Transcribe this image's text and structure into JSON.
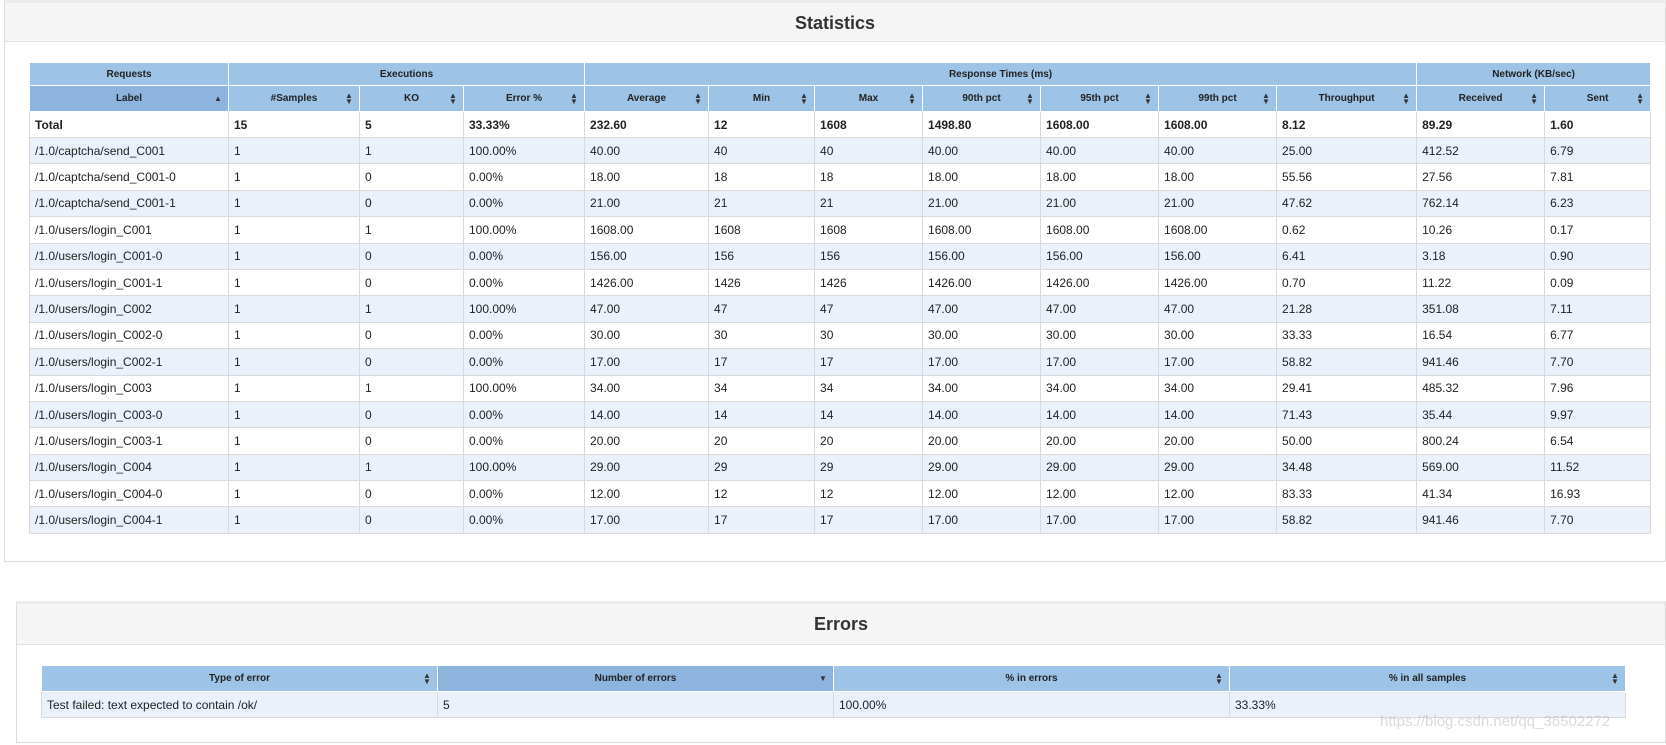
{
  "statistics": {
    "title": "Statistics",
    "groups": [
      {
        "label": "Requests",
        "span": 1
      },
      {
        "label": "Executions",
        "span": 3
      },
      {
        "label": "Response Times (ms)",
        "span": 7
      },
      {
        "label": "Network (KB/sec)",
        "span": 2
      }
    ],
    "columns": [
      {
        "label": "Label",
        "sort": "asc"
      },
      {
        "label": "#Samples",
        "sort": "both"
      },
      {
        "label": "KO",
        "sort": "both"
      },
      {
        "label": "Error %",
        "sort": "both"
      },
      {
        "label": "Average",
        "sort": "both"
      },
      {
        "label": "Min",
        "sort": "both"
      },
      {
        "label": "Max",
        "sort": "both"
      },
      {
        "label": "90th pct",
        "sort": "both"
      },
      {
        "label": "95th pct",
        "sort": "both"
      },
      {
        "label": "99th pct",
        "sort": "both"
      },
      {
        "label": "Throughput",
        "sort": "both"
      },
      {
        "label": "Received",
        "sort": "both"
      },
      {
        "label": "Sent",
        "sort": "both"
      }
    ],
    "total": [
      "Total",
      "15",
      "5",
      "33.33%",
      "232.60",
      "12",
      "1608",
      "1498.80",
      "1608.00",
      "1608.00",
      "8.12",
      "89.29",
      "1.60"
    ],
    "rows": [
      [
        "/1.0/captcha/send_C001",
        "1",
        "1",
        "100.00%",
        "40.00",
        "40",
        "40",
        "40.00",
        "40.00",
        "40.00",
        "25.00",
        "412.52",
        "6.79"
      ],
      [
        "/1.0/captcha/send_C001-0",
        "1",
        "0",
        "0.00%",
        "18.00",
        "18",
        "18",
        "18.00",
        "18.00",
        "18.00",
        "55.56",
        "27.56",
        "7.81"
      ],
      [
        "/1.0/captcha/send_C001-1",
        "1",
        "0",
        "0.00%",
        "21.00",
        "21",
        "21",
        "21.00",
        "21.00",
        "21.00",
        "47.62",
        "762.14",
        "6.23"
      ],
      [
        "/1.0/users/login_C001",
        "1",
        "1",
        "100.00%",
        "1608.00",
        "1608",
        "1608",
        "1608.00",
        "1608.00",
        "1608.00",
        "0.62",
        "10.26",
        "0.17"
      ],
      [
        "/1.0/users/login_C001-0",
        "1",
        "0",
        "0.00%",
        "156.00",
        "156",
        "156",
        "156.00",
        "156.00",
        "156.00",
        "6.41",
        "3.18",
        "0.90"
      ],
      [
        "/1.0/users/login_C001-1",
        "1",
        "0",
        "0.00%",
        "1426.00",
        "1426",
        "1426",
        "1426.00",
        "1426.00",
        "1426.00",
        "0.70",
        "11.22",
        "0.09"
      ],
      [
        "/1.0/users/login_C002",
        "1",
        "1",
        "100.00%",
        "47.00",
        "47",
        "47",
        "47.00",
        "47.00",
        "47.00",
        "21.28",
        "351.08",
        "7.11"
      ],
      [
        "/1.0/users/login_C002-0",
        "1",
        "0",
        "0.00%",
        "30.00",
        "30",
        "30",
        "30.00",
        "30.00",
        "30.00",
        "33.33",
        "16.54",
        "6.77"
      ],
      [
        "/1.0/users/login_C002-1",
        "1",
        "0",
        "0.00%",
        "17.00",
        "17",
        "17",
        "17.00",
        "17.00",
        "17.00",
        "58.82",
        "941.46",
        "7.70"
      ],
      [
        "/1.0/users/login_C003",
        "1",
        "1",
        "100.00%",
        "34.00",
        "34",
        "34",
        "34.00",
        "34.00",
        "34.00",
        "29.41",
        "485.32",
        "7.96"
      ],
      [
        "/1.0/users/login_C003-0",
        "1",
        "0",
        "0.00%",
        "14.00",
        "14",
        "14",
        "14.00",
        "14.00",
        "14.00",
        "71.43",
        "35.44",
        "9.97"
      ],
      [
        "/1.0/users/login_C003-1",
        "1",
        "0",
        "0.00%",
        "20.00",
        "20",
        "20",
        "20.00",
        "20.00",
        "20.00",
        "50.00",
        "800.24",
        "6.54"
      ],
      [
        "/1.0/users/login_C004",
        "1",
        "1",
        "100.00%",
        "29.00",
        "29",
        "29",
        "29.00",
        "29.00",
        "29.00",
        "34.48",
        "569.00",
        "11.52"
      ],
      [
        "/1.0/users/login_C004-0",
        "1",
        "0",
        "0.00%",
        "12.00",
        "12",
        "12",
        "12.00",
        "12.00",
        "12.00",
        "83.33",
        "41.34",
        "16.93"
      ],
      [
        "/1.0/users/login_C004-1",
        "1",
        "0",
        "0.00%",
        "17.00",
        "17",
        "17",
        "17.00",
        "17.00",
        "17.00",
        "58.82",
        "941.46",
        "7.70"
      ]
    ]
  },
  "errors": {
    "title": "Errors",
    "columns": [
      {
        "label": "Type of error",
        "sort": "both"
      },
      {
        "label": "Number of errors",
        "sort": "desc"
      },
      {
        "label": "% in errors",
        "sort": "both"
      },
      {
        "label": "% in all samples",
        "sort": "both"
      }
    ],
    "rows": [
      [
        "Test failed: text expected to contain /ok/",
        "5",
        "100.00%",
        "33.33%"
      ]
    ]
  },
  "watermark": "https://blog.csdn.net/qq_36502272",
  "colors": {
    "header_bg": "#9dc3e6",
    "row_alt_bg": "#eaf1fb",
    "panel_head_bg": "#f5f5f5"
  },
  "icons": {
    "sort_both": "sort-both-icon",
    "sort_asc": "sort-asc-icon",
    "sort_desc": "sort-desc-icon"
  }
}
